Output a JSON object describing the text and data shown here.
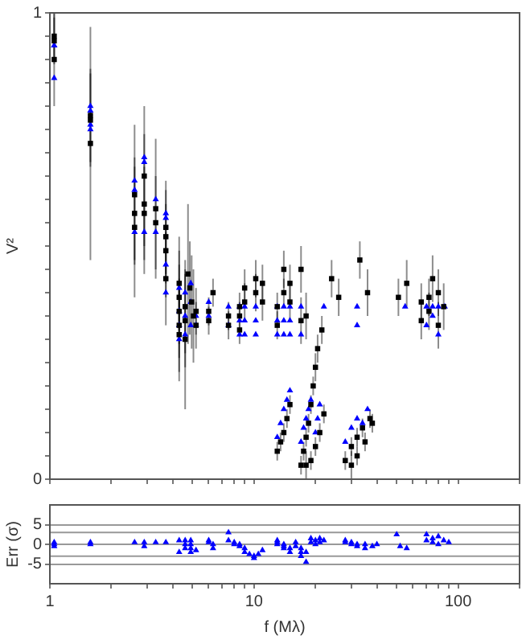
{
  "chart_data": [
    {
      "type": "scatter",
      "ylabel": "V²",
      "log": "x",
      "xlim": [
        1,
        200
      ],
      "ylim": [
        0,
        1
      ],
      "xticks": [
        {
          "value": 1,
          "label": null
        },
        {
          "value": 2,
          "label": null
        },
        {
          "value": 3,
          "label": null
        },
        {
          "value": 4,
          "label": null
        },
        {
          "value": 5,
          "label": null
        },
        {
          "value": 6,
          "label": null
        },
        {
          "value": 7,
          "label": null
        },
        {
          "value": 8,
          "label": null
        },
        {
          "value": 9,
          "label": null
        },
        {
          "value": 10,
          "label": null
        },
        {
          "value": 20,
          "label": null
        },
        {
          "value": 30,
          "label": null
        },
        {
          "value": 40,
          "label": null
        },
        {
          "value": 50,
          "label": null
        },
        {
          "value": 60,
          "label": null
        },
        {
          "value": 70,
          "label": null
        },
        {
          "value": 80,
          "label": null
        },
        {
          "value": 90,
          "label": null
        },
        {
          "value": 100,
          "label": null
        },
        {
          "value": 200,
          "label": null
        }
      ],
      "yticks": [
        0,
        {
          "value": 0.05,
          "label": null
        },
        {
          "value": 0.1,
          "label": null
        },
        {
          "value": 0.15,
          "label": null
        },
        {
          "value": 0.2,
          "label": null
        },
        {
          "value": 0.25,
          "label": null
        },
        {
          "value": 0.3,
          "label": null
        },
        {
          "value": 0.35,
          "label": null
        },
        {
          "value": 0.4,
          "label": null
        },
        {
          "value": 0.45,
          "label": null
        },
        {
          "value": 0.5,
          "label": null
        },
        {
          "value": 0.55,
          "label": null
        },
        {
          "value": 0.6,
          "label": null
        },
        {
          "value": 0.65,
          "label": null
        },
        {
          "value": 0.7,
          "label": null
        },
        {
          "value": 0.75,
          "label": null
        },
        {
          "value": 0.8,
          "label": null
        },
        {
          "value": 0.85,
          "label": null
        },
        {
          "value": 0.9,
          "label": null
        },
        {
          "value": 0.95,
          "label": null
        },
        1
      ],
      "tick_labels": "y",
      "legend": false,
      "series": [
        {
          "color": "#000000",
          "marker": "square",
          "x": [
            1.05,
            1.05,
            1.05,
            1.58,
            1.58,
            1.58,
            2.6,
            2.6,
            2.6,
            2.9,
            2.9,
            2.9,
            3.3,
            3.3,
            3.7,
            3.7,
            3.7,
            3.7,
            4.3,
            4.3,
            4.3,
            4.3,
            4.3,
            4.6,
            4.6,
            4.6,
            4.75,
            4.85,
            4.95,
            5.05,
            5.2,
            5.2,
            6.0,
            6.0,
            6.3,
            7.5,
            7.5,
            8.5,
            8.5,
            8.5,
            9,
            9,
            10.2,
            10.2,
            11,
            11,
            13,
            13,
            14,
            14,
            15,
            15,
            17,
            17,
            18,
            24,
            26,
            33,
            36,
            51,
            56,
            66,
            66,
            72,
            72,
            75,
            80,
            80,
            85,
            13,
            13.5,
            14,
            14.5,
            15,
            17,
            17.5,
            18,
            18.5,
            19,
            19.5,
            20,
            20.5,
            21.5,
            18,
            19,
            20,
            21,
            22,
            28,
            30,
            32,
            34,
            37,
            30,
            32,
            35,
            38
          ],
          "values": [
            0.95,
            0.94,
            0.9,
            0.78,
            0.77,
            0.72,
            0.61,
            0.57,
            0.54,
            0.65,
            0.59,
            0.57,
            0.58,
            0.55,
            0.54,
            0.52,
            0.49,
            0.43,
            0.42,
            0.39,
            0.36,
            0.33,
            0.31,
            0.37,
            0.34,
            0.3,
            0.44,
            0.41,
            0.38,
            0.35,
            0.36,
            0.33,
            0.36,
            0.34,
            0.4,
            0.35,
            0.33,
            0.37,
            0.35,
            0.32,
            0.41,
            0.38,
            0.43,
            0.4,
            0.42,
            0.38,
            0.33,
            0.37,
            0.4,
            0.45,
            0.42,
            0.38,
            0.45,
            0.34,
            0.35,
            0.43,
            0.39,
            0.47,
            0.4,
            0.39,
            0.42,
            0.34,
            0.38,
            0.39,
            0.36,
            0.43,
            0.4,
            0.33,
            0.37,
            0.06,
            0.08,
            0.1,
            0.13,
            0.16,
            0.03,
            0.06,
            0.09,
            0.12,
            0.16,
            0.2,
            0.24,
            0.28,
            0.32,
            0.03,
            0.04,
            0.07,
            0.1,
            0.14,
            0.04,
            0.07,
            0.09,
            0.11,
            0.13,
            0.03,
            0.05,
            0.08,
            0.12
          ],
          "errors": [
            0.05,
            0.05,
            0.1,
            0.1,
            0.1,
            0.25,
            0.15,
            0.1,
            0.15,
            0.15,
            0.15,
            0.1,
            0.15,
            0.1,
            0.1,
            0.1,
            0.1,
            0.1,
            0.1,
            0.1,
            0.1,
            0.1,
            0.1,
            0.1,
            0.1,
            0.15,
            0.15,
            0.1,
            0.1,
            0.1,
            0.05,
            0.05,
            0.03,
            0.03,
            0.03,
            0.03,
            0.03,
            0.03,
            0.03,
            0.03,
            0.04,
            0.04,
            0.04,
            0.04,
            0.04,
            0.04,
            0.03,
            0.03,
            0.03,
            0.04,
            0.04,
            0.04,
            0.05,
            0.05,
            0.05,
            0.04,
            0.04,
            0.04,
            0.05,
            0.04,
            0.05,
            0.04,
            0.04,
            0.04,
            0.04,
            0.05,
            0.05,
            0.05,
            0.05,
            0.02,
            0.02,
            0.02,
            0.02,
            0.02,
            0.02,
            0.02,
            0.02,
            0.02,
            0.02,
            0.02,
            0.03,
            0.03,
            0.03,
            0.03,
            0.02,
            0.02,
            0.02,
            0.02,
            0.02,
            0.02,
            0.02,
            0.02,
            0.02,
            0.03,
            0.02,
            0.02,
            0.02
          ]
        },
        {
          "color": "#0000ff",
          "marker": "triangle",
          "x": [
            1.05,
            1.05,
            1.05,
            1.58,
            1.58,
            1.58,
            1.58,
            2.6,
            2.6,
            2.6,
            2.9,
            2.9,
            2.9,
            3.3,
            3.3,
            3.7,
            3.7,
            3.7,
            3.7,
            4.3,
            4.3,
            4.3,
            4.3,
            4.6,
            4.6,
            4.6,
            4.9,
            4.9,
            4.9,
            5.2,
            5.2,
            6,
            6,
            7.5,
            7.5,
            8.5,
            8.5,
            8.5,
            9,
            9,
            9,
            10.2,
            10.2,
            10.2,
            13,
            13,
            13,
            14,
            14,
            14,
            15,
            15,
            15,
            17,
            17,
            22,
            32,
            32,
            55,
            70,
            70,
            75,
            75,
            80,
            80,
            86,
            13,
            13.5,
            14,
            14.5,
            15,
            17,
            17.5,
            18,
            18.5,
            19,
            20,
            20.5,
            21,
            28,
            30,
            32,
            34,
            36
          ],
          "values": [
            0.93,
            0.93,
            0.86,
            0.8,
            0.79,
            0.76,
            0.75,
            0.64,
            0.62,
            0.53,
            0.69,
            0.68,
            0.53,
            0.6,
            0.53,
            0.57,
            0.56,
            0.46,
            0.4,
            0.41,
            0.36,
            0.33,
            0.3,
            0.4,
            0.35,
            0.31,
            0.42,
            0.38,
            0.33,
            0.35,
            0.33,
            0.38,
            0.35,
            0.37,
            0.33,
            0.37,
            0.34,
            0.31,
            0.37,
            0.34,
            0.31,
            0.37,
            0.34,
            0.31,
            0.37,
            0.34,
            0.31,
            0.37,
            0.34,
            0.31,
            0.37,
            0.34,
            0.31,
            0.37,
            0.31,
            0.37,
            0.37,
            0.33,
            0.37,
            0.37,
            0.33,
            0.37,
            0.35,
            0.37,
            0.31,
            0.37,
            0.09,
            0.12,
            0.15,
            0.17,
            0.19,
            0.08,
            0.11,
            0.13,
            0.15,
            0.17,
            0.1,
            0.13,
            0.16,
            0.08,
            0.11,
            0.13,
            0.12,
            0.15
          ]
        }
      ]
    },
    {
      "type": "scatter",
      "xlabel": "f (Mλ)",
      "ylabel": "Err (σ)",
      "log": "x",
      "xlim": [
        1,
        200
      ],
      "ylim": [
        -10,
        10
      ],
      "xticks": [
        1,
        {
          "value": 2,
          "label": null
        },
        {
          "value": 3,
          "label": null
        },
        {
          "value": 4,
          "label": null
        },
        {
          "value": 5,
          "label": null
        },
        {
          "value": 6,
          "label": null
        },
        {
          "value": 7,
          "label": null
        },
        {
          "value": 8,
          "label": null
        },
        {
          "value": 9,
          "label": null
        },
        10,
        {
          "value": 20,
          "label": null
        },
        {
          "value": 30,
          "label": null
        },
        {
          "value": 40,
          "label": null
        },
        {
          "value": 50,
          "label": null
        },
        {
          "value": 60,
          "label": null
        },
        {
          "value": 70,
          "label": null
        },
        {
          "value": 80,
          "label": null
        },
        {
          "value": 90,
          "label": null
        },
        100,
        {
          "value": 200,
          "label": null
        }
      ],
      "yticks": [
        -5,
        0,
        5
      ],
      "grid": "y",
      "legend": false,
      "ref_lines": [
        {
          "axis": "y",
          "value": 3
        },
        {
          "axis": "y",
          "value": -3
        }
      ],
      "series": [
        {
          "color": "#0000ff",
          "marker": "triangle",
          "x": [
            1.05,
            1.05,
            1.05,
            1.58,
            1.58,
            2.6,
            2.9,
            2.9,
            3.3,
            3.7,
            4.3,
            4.3,
            4.6,
            4.6,
            4.6,
            4.9,
            4.9,
            4.9,
            4.9,
            5.2,
            6,
            6,
            6.3,
            6.3,
            7.5,
            7.5,
            8,
            8,
            8.5,
            8.5,
            9,
            9,
            9.5,
            10,
            10,
            10.5,
            11,
            13,
            13,
            13,
            14,
            14,
            14,
            15,
            15,
            16,
            16,
            17,
            17,
            17,
            18,
            18,
            19,
            19,
            20,
            20,
            21,
            21,
            22,
            28,
            28,
            30,
            30,
            32,
            32,
            35,
            35,
            38,
            40,
            50,
            52,
            56,
            70,
            70,
            75,
            75,
            80,
            80,
            85,
            90
          ],
          "values": [
            0,
            -0.5,
            0.5,
            0.5,
            0,
            0.5,
            0.5,
            -0.5,
            0.5,
            0.5,
            1,
            -2,
            1,
            0,
            -1,
            1,
            0,
            -1,
            -2,
            -1.5,
            1,
            0.5,
            0,
            -1,
            3,
            1,
            0.5,
            0,
            0,
            -0.5,
            -1,
            -2,
            -2.5,
            -3,
            -3.5,
            -2.5,
            -1.5,
            1,
            0.5,
            0,
            0,
            -0.5,
            -1,
            -1,
            -2,
            0.5,
            -0.5,
            -1,
            -2,
            -3,
            -2,
            -4.5,
            1.5,
            0.5,
            1,
            0,
            1.5,
            0.5,
            1,
            1,
            0.5,
            0.5,
            0,
            0,
            -0.5,
            -1,
            0,
            -0.5,
            0,
            2.5,
            -0.5,
            -1,
            2.5,
            1,
            1.5,
            0.5,
            2,
            0,
            1,
            0.5
          ]
        }
      ]
    }
  ]
}
